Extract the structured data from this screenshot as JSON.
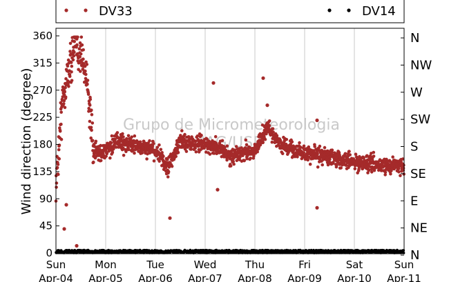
{
  "chart_data": {
    "type": "scatter",
    "ylabel": "Wind direction (degree)",
    "ylim": [
      0,
      370
    ],
    "yticks": [
      0,
      45,
      90,
      135,
      180,
      225,
      270,
      315,
      360
    ],
    "right_ticks": [
      {
        "value": 360,
        "label": "N"
      },
      {
        "value": 315,
        "label": "NW"
      },
      {
        "value": 270,
        "label": "W"
      },
      {
        "value": 225,
        "label": "SW"
      },
      {
        "value": 180,
        "label": "S"
      },
      {
        "value": 135,
        "label": "SE"
      },
      {
        "value": 90,
        "label": "E"
      },
      {
        "value": 45,
        "label": "NE"
      },
      {
        "value": 0,
        "label": "N"
      }
    ],
    "xticks": [
      {
        "day": "Sun",
        "date": "Apr-04"
      },
      {
        "day": "Mon",
        "date": "Apr-05"
      },
      {
        "day": "Tue",
        "date": "Apr-06"
      },
      {
        "day": "Wed",
        "date": "Apr-07"
      },
      {
        "day": "Thu",
        "date": "Apr-08"
      },
      {
        "day": "Fri",
        "date": "Apr-09"
      },
      {
        "day": "Sat",
        "date": "Apr-10"
      },
      {
        "day": "Sun",
        "date": "Apr-11"
      }
    ],
    "grid": true,
    "watermark": [
      "Grupo de Micrometeorologia",
      "IAG/USP"
    ],
    "series": [
      {
        "name": "DV33",
        "color": "#a52a2a",
        "marker": "circle",
        "trend": [
          {
            "x": "Apr-04 00:00",
            "y": 110
          },
          {
            "x": "Apr-04 03:00",
            "y": 250
          },
          {
            "x": "Apr-04 06:00",
            "y": 300
          },
          {
            "x": "Apr-04 09:00",
            "y": 345
          },
          {
            "x": "Apr-04 12:00",
            "y": 330
          },
          {
            "x": "Apr-04 15:00",
            "y": 290
          },
          {
            "x": "Apr-04 18:00",
            "y": 165
          },
          {
            "x": "Apr-05 00:00",
            "y": 170
          },
          {
            "x": "Apr-05 06:00",
            "y": 185
          },
          {
            "x": "Apr-05 12:00",
            "y": 180
          },
          {
            "x": "Apr-06 00:00",
            "y": 170
          },
          {
            "x": "Apr-06 06:00",
            "y": 140
          },
          {
            "x": "Apr-06 12:00",
            "y": 185
          },
          {
            "x": "Apr-07 00:00",
            "y": 180
          },
          {
            "x": "Apr-07 06:00",
            "y": 175
          },
          {
            "x": "Apr-07 12:00",
            "y": 160
          },
          {
            "x": "Apr-08 00:00",
            "y": 170
          },
          {
            "x": "Apr-08 06:00",
            "y": 210
          },
          {
            "x": "Apr-08 12:00",
            "y": 180
          },
          {
            "x": "Apr-09 00:00",
            "y": 165
          },
          {
            "x": "Apr-09 12:00",
            "y": 160
          },
          {
            "x": "Apr-10 00:00",
            "y": 150
          },
          {
            "x": "Apr-10 12:00",
            "y": 145
          },
          {
            "x": "Apr-11 00:00",
            "y": 145
          }
        ],
        "outliers": [
          {
            "x": "Apr-04 04:00",
            "y": 40
          },
          {
            "x": "Apr-04 05:00",
            "y": 80
          },
          {
            "x": "Apr-04 10:00",
            "y": 12
          },
          {
            "x": "Apr-06 07:00",
            "y": 58
          },
          {
            "x": "Apr-07 04:00",
            "y": 282
          },
          {
            "x": "Apr-07 06:00",
            "y": 105
          },
          {
            "x": "Apr-08 04:00",
            "y": 290
          },
          {
            "x": "Apr-08 06:00",
            "y": 245
          },
          {
            "x": "Apr-09 06:00",
            "y": 220
          },
          {
            "x": "Apr-09 06:00",
            "y": 75
          }
        ]
      },
      {
        "name": "DV14",
        "color": "#000000",
        "marker": "circle",
        "level": [
          0,
          5
        ]
      }
    ],
    "legend": [
      {
        "label": "DV33",
        "color": "#a52a2a"
      },
      {
        "label": "DV14",
        "color": "#000000"
      }
    ]
  }
}
